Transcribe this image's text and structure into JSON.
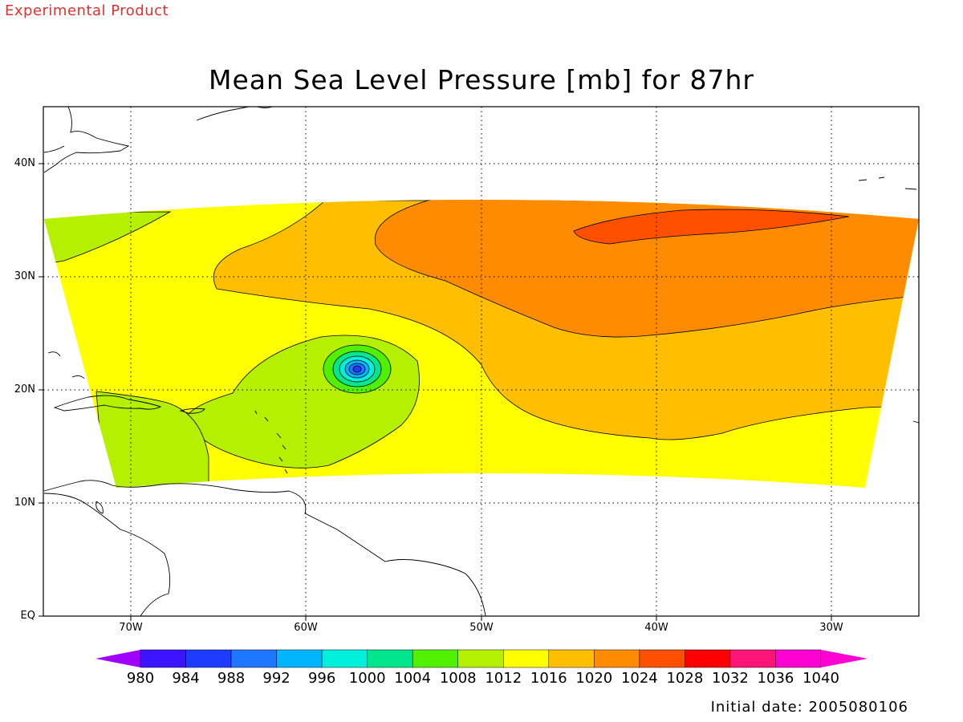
{
  "header": {
    "product_label": "Experimental Product",
    "title": "Mean Sea Level Pressure [mb] for 87hr"
  },
  "map": {
    "lat_labels": [
      "40N",
      "30N",
      "20N",
      "10N",
      "EQ"
    ],
    "lon_labels": [
      "70W",
      "60W",
      "50W",
      "40W",
      "30W"
    ],
    "land_outline_color": "#000000",
    "grid_style": "dotted"
  },
  "colorbar": {
    "levels": [
      "980",
      "984",
      "988",
      "992",
      "996",
      "1000",
      "1004",
      "1008",
      "1012",
      "1016",
      "1020",
      "1024",
      "1028",
      "1032",
      "1036",
      "1040"
    ],
    "colors": [
      "#a000ff",
      "#3c14ff",
      "#1e3cff",
      "#1e78ff",
      "#00b4ff",
      "#00f0dc",
      "#00e68c",
      "#50f000",
      "#b4f000",
      "#ffff00",
      "#ffbe00",
      "#ff8c00",
      "#ff5000",
      "#ff0000",
      "#ff1478",
      "#ff00d2"
    ]
  },
  "footer": {
    "initial_date": "Initial date: 2005080106"
  }
}
